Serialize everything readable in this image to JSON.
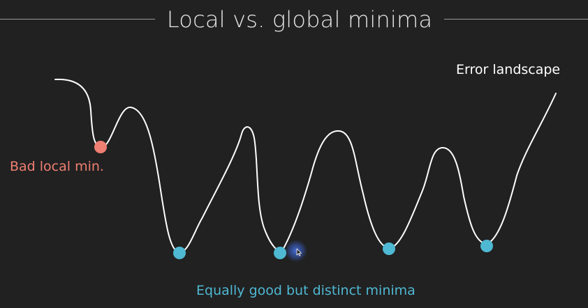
{
  "slide": {
    "title": "Local vs. global minima",
    "curve_label": "Error landscape",
    "bad_label": "Bad local min.",
    "good_label": "Equally good but distinct minima"
  },
  "colors": {
    "background": "#212121",
    "curve": "#ffffff",
    "bad_minimum": "#ef7f72",
    "good_minimum": "#4fb8d3",
    "cursor_halo": "#3a5fc8"
  },
  "icons": {
    "cursor": "mouse-pointer-icon"
  }
}
